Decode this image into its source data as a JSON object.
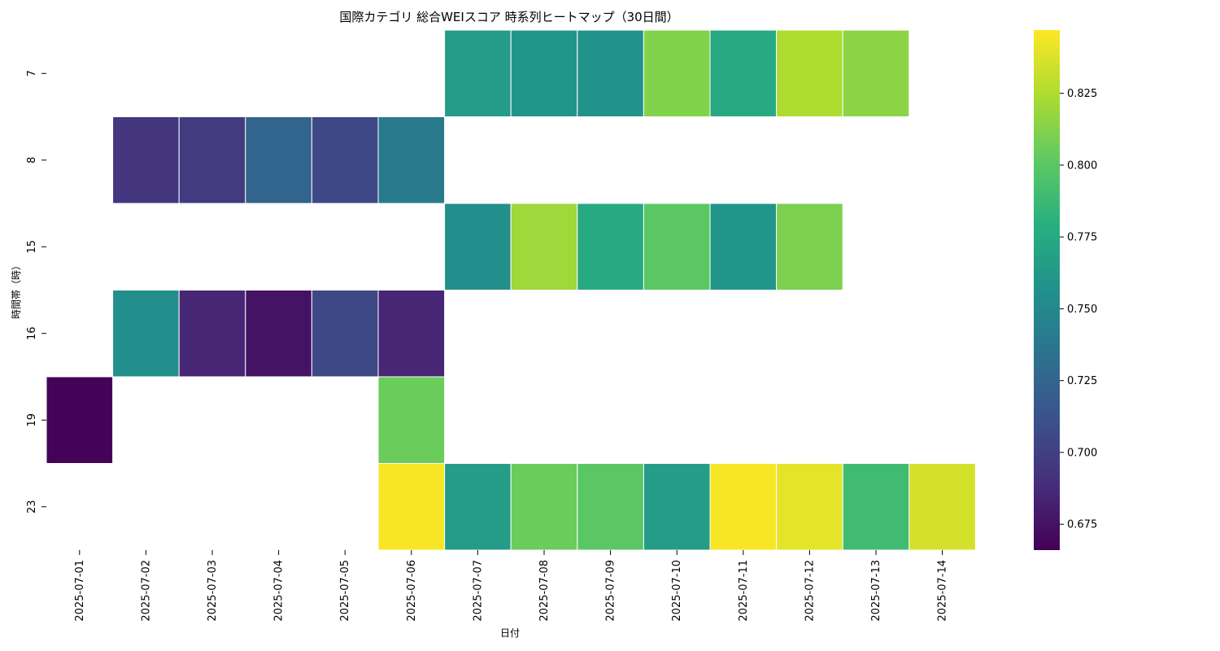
{
  "chart_data": {
    "type": "heatmap",
    "title": "国際カテゴリ 総合WEIスコア 時系列ヒートマップ（30日間）",
    "xlabel": "日付",
    "ylabel": "時間帯（時）",
    "colormap": "viridis",
    "x": [
      "2025-07-01",
      "2025-07-02",
      "2025-07-03",
      "2025-07-04",
      "2025-07-05",
      "2025-07-06",
      "2025-07-07",
      "2025-07-08",
      "2025-07-09",
      "2025-07-10",
      "2025-07-11",
      "2025-07-12",
      "2025-07-13",
      "2025-07-14"
    ],
    "y": [
      "7",
      "8",
      "15",
      "16",
      "19",
      "23"
    ],
    "values": [
      [
        null,
        null,
        null,
        null,
        null,
        null,
        0.765,
        0.76,
        0.758,
        0.812,
        0.775,
        0.825,
        0.815,
        null
      ],
      [
        null,
        0.695,
        0.697,
        0.725,
        0.705,
        0.74,
        null,
        null,
        null,
        null,
        null,
        null,
        null,
        null
      ],
      [
        null,
        null,
        null,
        null,
        null,
        null,
        0.755,
        0.82,
        0.775,
        0.8,
        0.76,
        0.81,
        null,
        null
      ],
      [
        null,
        0.755,
        0.685,
        0.675,
        0.705,
        0.685,
        null,
        null,
        null,
        null,
        null,
        null,
        null,
        null
      ],
      [
        0.667,
        null,
        null,
        null,
        null,
        0.805,
        null,
        null,
        null,
        null,
        null,
        null,
        null,
        null
      ],
      [
        null,
        null,
        null,
        null,
        null,
        0.845,
        0.765,
        0.805,
        0.8,
        0.765,
        0.845,
        0.84,
        0.79,
        0.835
      ]
    ],
    "colorbar": {
      "min": 0.666,
      "max": 0.847,
      "ticks": [
        0.675,
        0.7,
        0.725,
        0.75,
        0.775,
        0.8,
        0.825
      ],
      "tick_labels": [
        "0.675",
        "0.700",
        "0.725",
        "0.750",
        "0.775",
        "0.800",
        "0.825"
      ]
    }
  }
}
